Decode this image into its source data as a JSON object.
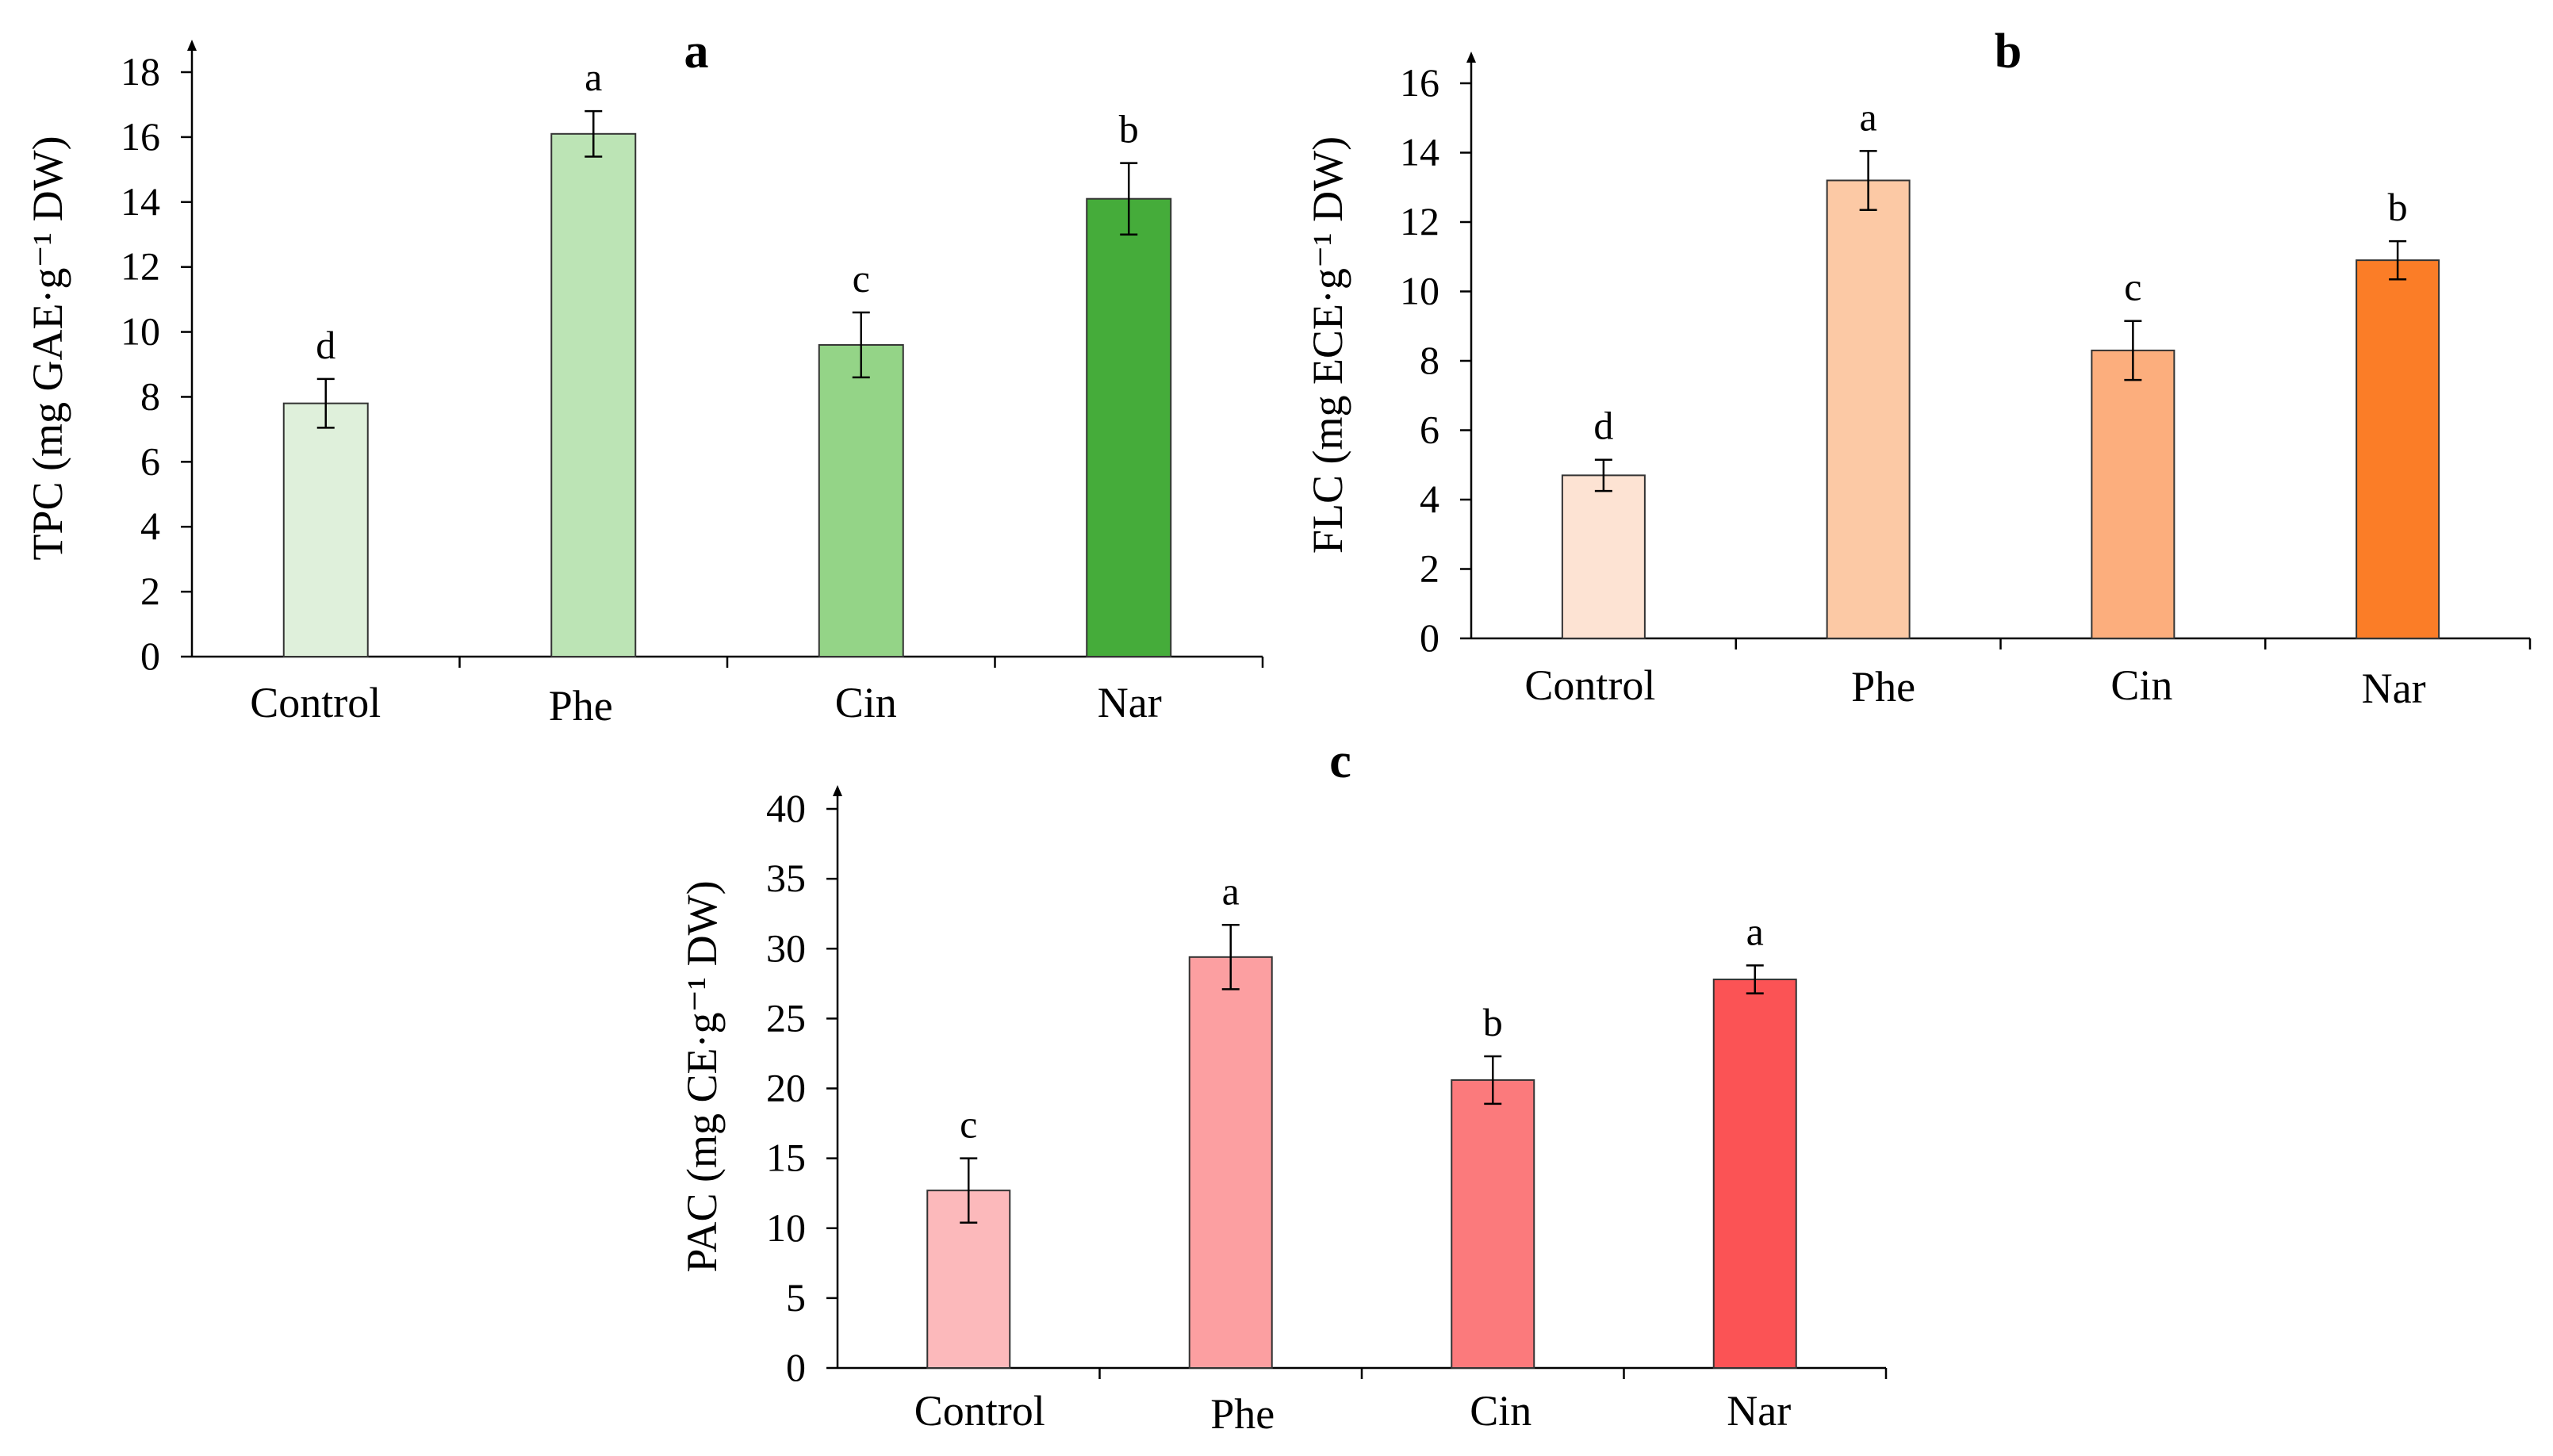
{
  "figure": {
    "panels": [
      "a",
      "b",
      "c"
    ]
  },
  "chart_data": [
    {
      "type": "bar",
      "panel": "a",
      "title": "a",
      "ylabel": "TPC (mg GAE·g⁻¹ DW)",
      "xlabel": "",
      "categories": [
        "Control",
        "Phe",
        "Cin",
        "Nar"
      ],
      "values": [
        7.8,
        16.1,
        9.6,
        14.1
      ],
      "errors": [
        0.75,
        0.7,
        1.0,
        1.1
      ],
      "significance": [
        "d",
        "a",
        "c",
        "b"
      ],
      "colors": [
        "#dff0db",
        "#bce4b5",
        "#94d487",
        "#45ac3a"
      ],
      "ylim": [
        0,
        18
      ],
      "yticks": [
        0,
        2,
        4,
        6,
        8,
        10,
        12,
        14,
        16,
        18
      ]
    },
    {
      "type": "bar",
      "panel": "b",
      "title": "b",
      "ylabel": "FLC (mg ECE·g⁻¹ DW)",
      "xlabel": "",
      "categories": [
        "Control",
        "Phe",
        "Cin",
        "Nar"
      ],
      "values": [
        4.7,
        13.2,
        8.3,
        10.9
      ],
      "errors": [
        0.45,
        0.85,
        0.85,
        0.55
      ],
      "significance": [
        "d",
        "a",
        "c",
        "b"
      ],
      "colors": [
        "#fde3d3",
        "#fcc9a5",
        "#fcae7d",
        "#fb7d27"
      ],
      "ylim": [
        0,
        16
      ],
      "yticks": [
        0,
        2,
        4,
        6,
        8,
        10,
        12,
        14,
        16
      ]
    },
    {
      "type": "bar",
      "panel": "c",
      "title": "c",
      "ylabel": "PAC (mg CE·g⁻¹ DW)",
      "xlabel": "",
      "categories": [
        "Control",
        "Phe",
        "Cin",
        "Nar"
      ],
      "values": [
        12.7,
        29.4,
        20.6,
        27.8
      ],
      "errors": [
        2.3,
        2.3,
        1.7,
        1.0
      ],
      "significance": [
        "c",
        "a",
        "b",
        "a"
      ],
      "colors": [
        "#fcb9bb",
        "#fc9fa1",
        "#fb7a7c",
        "#fb5355"
      ],
      "ylim": [
        0,
        40
      ],
      "yticks": [
        0,
        5,
        10,
        15,
        20,
        25,
        30,
        35,
        40
      ]
    }
  ]
}
